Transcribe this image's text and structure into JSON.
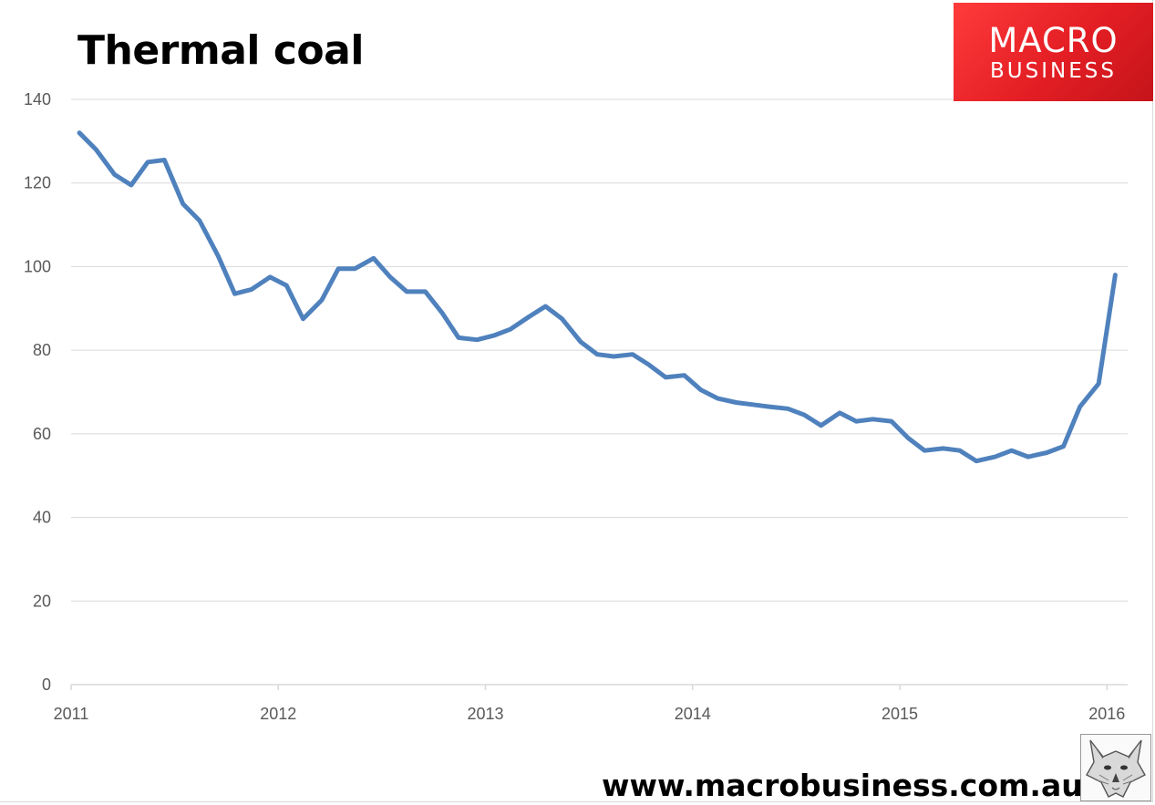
{
  "header": {
    "title": "Thermal coal"
  },
  "logo": {
    "line1": "MACRO",
    "line2": "BUSINESS"
  },
  "footer": {
    "url": "www.macrobusiness.com.au"
  },
  "colors": {
    "line": "#4f81bd",
    "grid": "#d9d9d9",
    "axis": "#7f7f7f",
    "logo_bg": "#e31e24",
    "tick_text": "#595959"
  },
  "icons": {
    "watermark": "fox-icon"
  },
  "chart_data": {
    "type": "line",
    "title": "Thermal coal",
    "xlabel": "",
    "ylabel": "",
    "xlim": [
      2011.0,
      2016.1
    ],
    "ylim": [
      0,
      140
    ],
    "x_ticks": [
      "2011",
      "2012",
      "2013",
      "2014",
      "2015",
      "2016"
    ],
    "y_ticks": [
      "0",
      "20",
      "40",
      "60",
      "80",
      "100",
      "120",
      "140"
    ],
    "grid": "horizontal",
    "legend": "none",
    "series": [
      {
        "x": [
          2011.04,
          2011.12,
          2011.21,
          2011.29,
          2011.37,
          2011.45,
          2011.54,
          2011.62,
          2011.71,
          2011.79,
          2011.87,
          2011.96,
          2012.04,
          2012.12,
          2012.21,
          2012.29,
          2012.37,
          2012.46,
          2012.54,
          2012.62,
          2012.71,
          2012.79,
          2012.87,
          2012.96,
          2013.04,
          2013.12,
          2013.21,
          2013.29,
          2013.37,
          2013.46,
          2013.54,
          2013.62,
          2013.71,
          2013.79,
          2013.87,
          2013.96,
          2014.04,
          2014.12,
          2014.21,
          2014.29,
          2014.37,
          2014.46,
          2014.54,
          2014.62,
          2014.71,
          2014.79,
          2014.87,
          2014.96,
          2015.04,
          2015.12,
          2015.21,
          2015.29,
          2015.37,
          2015.46,
          2015.54,
          2015.62,
          2015.71,
          2015.79,
          2015.87,
          2015.96,
          2016.04
        ],
        "values": [
          132,
          128,
          122,
          119.5,
          125,
          125.5,
          115,
          111,
          102.5,
          93.5,
          94.5,
          97.5,
          95.5,
          87.5,
          92,
          99.5,
          99.5,
          102,
          97.5,
          94,
          94,
          89,
          83,
          82.5,
          83.5,
          85,
          88,
          90.5,
          87.5,
          82,
          79,
          78.5,
          79,
          76.5,
          73.5,
          74,
          70.5,
          68.5,
          67.5,
          67,
          66.5,
          66,
          64.5,
          62,
          65,
          63,
          63.5,
          63,
          59,
          56,
          56.5,
          56,
          53.5,
          54.5,
          56,
          54.5,
          55.5,
          57,
          66.5,
          72,
          98
        ]
      }
    ]
  }
}
